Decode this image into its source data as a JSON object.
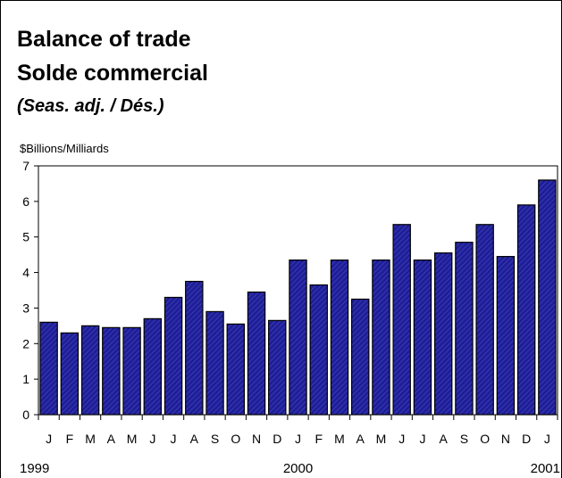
{
  "chart_data": {
    "type": "bar",
    "title": "Balance of trade",
    "subtitle": "Solde commercial",
    "note": "(Seas. adj. / Dés.)",
    "ylabel": "$Billions/Milliards",
    "xlabel": "",
    "ylim": [
      0,
      7
    ],
    "yticks": [
      0,
      1,
      2,
      3,
      4,
      5,
      6,
      7
    ],
    "grid": false,
    "categories": [
      "J",
      "F",
      "M",
      "A",
      "M",
      "J",
      "J",
      "A",
      "S",
      "O",
      "N",
      "D",
      "J",
      "F",
      "M",
      "A",
      "M",
      "J",
      "J",
      "A",
      "S",
      "O",
      "N",
      "D",
      "J"
    ],
    "values": [
      2.6,
      2.3,
      2.5,
      2.45,
      2.45,
      2.7,
      3.3,
      3.75,
      2.9,
      2.55,
      3.45,
      2.65,
      4.35,
      3.65,
      4.35,
      3.25,
      4.35,
      5.35,
      4.35,
      4.55,
      4.85,
      5.35,
      4.45,
      5.9,
      6.6
    ],
    "years": [
      {
        "label": "1999",
        "index": 0
      },
      {
        "label": "2000",
        "index": 12
      },
      {
        "label": "2001",
        "index": 24
      }
    ],
    "bar_color": "#1e1e96"
  }
}
